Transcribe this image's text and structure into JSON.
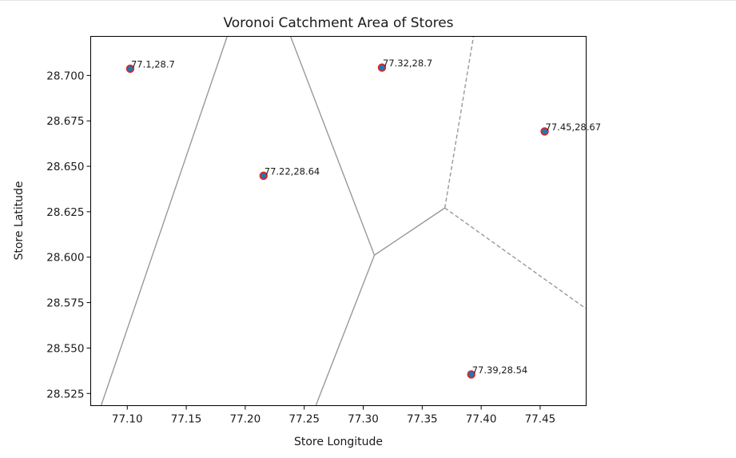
{
  "chart_data": {
    "type": "scatter",
    "title": "Voronoi Catchment Area of Stores",
    "xlabel": "Store Longitude",
    "ylabel": "Store Latitude",
    "xlim": [
      77.069,
      77.489
    ],
    "ylim": [
      28.5183,
      28.7215
    ],
    "x_ticks": [
      77.1,
      77.15,
      77.2,
      77.25,
      77.3,
      77.35,
      77.4,
      77.45
    ],
    "x_tick_labels": [
      "77.10",
      "77.15",
      "77.20",
      "77.25",
      "77.30",
      "77.35",
      "77.40",
      "77.45"
    ],
    "y_ticks": [
      28.525,
      28.55,
      28.575,
      28.6,
      28.625,
      28.65,
      28.675,
      28.7
    ],
    "y_tick_labels": [
      "28.525",
      "28.550",
      "28.575",
      "28.600",
      "28.625",
      "28.650",
      "28.675",
      "28.700"
    ],
    "grid": false,
    "points": [
      {
        "x": 77.1025,
        "y": 28.7037,
        "label": "77.1,28.7"
      },
      {
        "x": 77.2155,
        "y": 28.6448,
        "label": "77.22,28.64"
      },
      {
        "x": 77.3159,
        "y": 28.7043,
        "label": "77.32,28.7"
      },
      {
        "x": 77.4538,
        "y": 28.6692,
        "label": "77.45,28.67"
      },
      {
        "x": 77.3916,
        "y": 28.5355,
        "label": "77.39,28.54"
      }
    ],
    "voronoi_vertices": [
      {
        "x": 77.3095,
        "y": 28.6011
      },
      {
        "x": 77.3692,
        "y": 28.6271
      }
    ],
    "voronoi_edges": [
      {
        "from": [
          77.1847,
          28.7215
        ],
        "to": [
          77.0778,
          28.5183
        ],
        "style": "solid"
      },
      {
        "from": [
          77.2384,
          28.7215
        ],
        "to": [
          77.3095,
          28.6011
        ],
        "style": "solid"
      },
      {
        "from": [
          77.3095,
          28.6011
        ],
        "to": [
          77.2598,
          28.5183
        ],
        "style": "solid"
      },
      {
        "from": [
          77.3095,
          28.6011
        ],
        "to": [
          77.3692,
          28.6271
        ],
        "style": "solid"
      },
      {
        "from": [
          77.3692,
          28.6271
        ],
        "to": [
          77.3935,
          28.7215
        ],
        "style": "dashed"
      },
      {
        "from": [
          77.3692,
          28.6271
        ],
        "to": [
          77.489,
          28.5716
        ],
        "style": "dashed"
      }
    ],
    "colors": {
      "point_fill": "#1f77b4",
      "point_edge": "#d62728",
      "edge": "#999999"
    }
  }
}
